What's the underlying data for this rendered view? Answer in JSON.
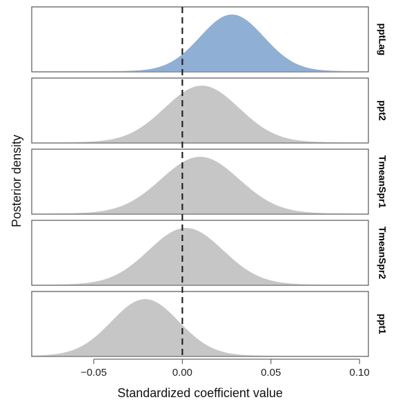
{
  "chart_data": {
    "type": "area",
    "xlabel": "Standardized coefficient value",
    "ylabel": "Posterior density",
    "xlim": [
      -0.085,
      0.105
    ],
    "x_ticks": [
      -0.05,
      0.0,
      0.05,
      0.1
    ],
    "x_tick_labels": [
      "−0.05",
      "0.00",
      "0.05",
      "0.10"
    ],
    "reference_line_x": 0.0,
    "grid": false,
    "series": [
      {
        "name": "pptLag",
        "mean": 0.028,
        "sd": 0.018,
        "color": "#8FAFD4",
        "highlight": true
      },
      {
        "name": "ppt2",
        "mean": 0.011,
        "sd": 0.021,
        "color": "#C6C6C6",
        "highlight": false
      },
      {
        "name": "TmeanSpr1",
        "mean": 0.01,
        "sd": 0.022,
        "color": "#C6C6C6",
        "highlight": false
      },
      {
        "name": "TmeanSpr2",
        "mean": 0.002,
        "sd": 0.021,
        "color": "#C6C6C6",
        "highlight": false
      },
      {
        "name": "ppt1",
        "mean": -0.021,
        "sd": 0.019,
        "color": "#C6C6C6",
        "highlight": false
      }
    ]
  }
}
